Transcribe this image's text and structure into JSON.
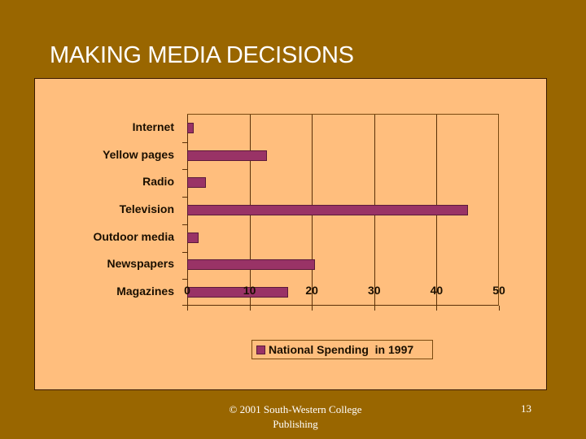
{
  "slide": {
    "title": "MAKING MEDIA DECISIONS",
    "footer_copyright": "© 2001 South-Western College Publishing",
    "page_number": "13"
  },
  "colors": {
    "background": "#996600",
    "panel": "#ffbe7d",
    "bar": "#993366",
    "title": "#ffffff"
  },
  "chart_data": {
    "type": "bar",
    "orientation": "horizontal",
    "title": "",
    "xlabel": "",
    "ylabel": "",
    "categories": [
      "Internet",
      "Yellow pages",
      "Radio",
      "Television",
      "Outdoor media",
      "Newspapers",
      "Magazines"
    ],
    "series": [
      {
        "name": "National Spending  in 1997",
        "values": [
          1,
          12.8,
          3,
          45,
          1.8,
          20.5,
          16.2
        ]
      }
    ],
    "xlim": [
      0,
      50
    ],
    "x_ticks": [
      "0",
      "10",
      "20",
      "30",
      "40",
      "50"
    ],
    "grid": "vertical",
    "legend_position": "bottom"
  }
}
